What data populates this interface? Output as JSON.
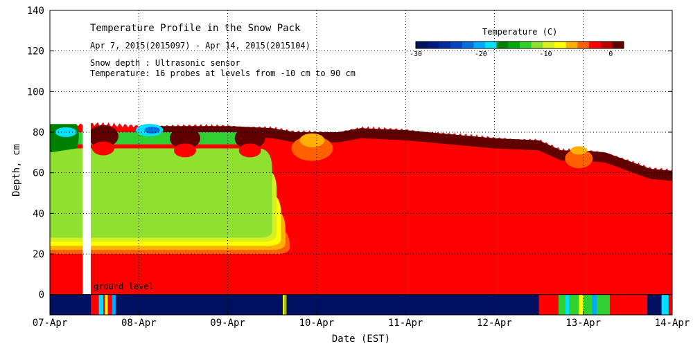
{
  "chart_data": {
    "type": "heatmap",
    "title": "Temperature Profile in the Snow Pack",
    "subtitle": "Apr  7, 2015(2015097) - Apr 14, 2015(2015104)",
    "notes": [
      "Snow depth : Ultrasonic sensor",
      "Temperature: 16 probes at levels from -10 cm to 90 cm"
    ],
    "xlabel": "Date (EST)",
    "ylabel": "Depth, cm",
    "x_ticks": [
      "07-Apr",
      "08-Apr",
      "09-Apr",
      "10-Apr",
      "11-Apr",
      "12-Apr",
      "13-Apr",
      "14-Apr"
    ],
    "y_ticks": [
      0,
      20,
      40,
      60,
      80,
      100,
      120,
      140
    ],
    "x_range_days": [
      7,
      14
    ],
    "ylim": [
      -10,
      140
    ],
    "grid": true,
    "ground_label": "ground level",
    "colorbar": {
      "title": "Temperature (C)",
      "ticks": [
        -30,
        -20,
        -10,
        0
      ],
      "colors": [
        "#001060",
        "#001a80",
        "#002aa0",
        "#0044c0",
        "#0070e0",
        "#00a8ff",
        "#00e0ff",
        "#008000",
        "#00aa00",
        "#30d030",
        "#90e030",
        "#d8f020",
        "#ffff00",
        "#ffb000",
        "#ff6000",
        "#ff0000",
        "#c00000",
        "#600000"
      ]
    },
    "snow_depth": {
      "day": [
        7.0,
        7.5,
        8.0,
        8.5,
        9.0,
        9.5,
        9.75,
        10.0,
        10.25,
        10.5,
        11.0,
        11.5,
        12.0,
        12.5,
        12.75,
        13.0,
        13.25,
        13.5,
        13.75,
        14.0
      ],
      "depth_cm": [
        83,
        84,
        83,
        83,
        83,
        82,
        80,
        80,
        80,
        82,
        81,
        79,
        77,
        76,
        71,
        71,
        70,
        66,
        62,
        61
      ]
    }
  }
}
